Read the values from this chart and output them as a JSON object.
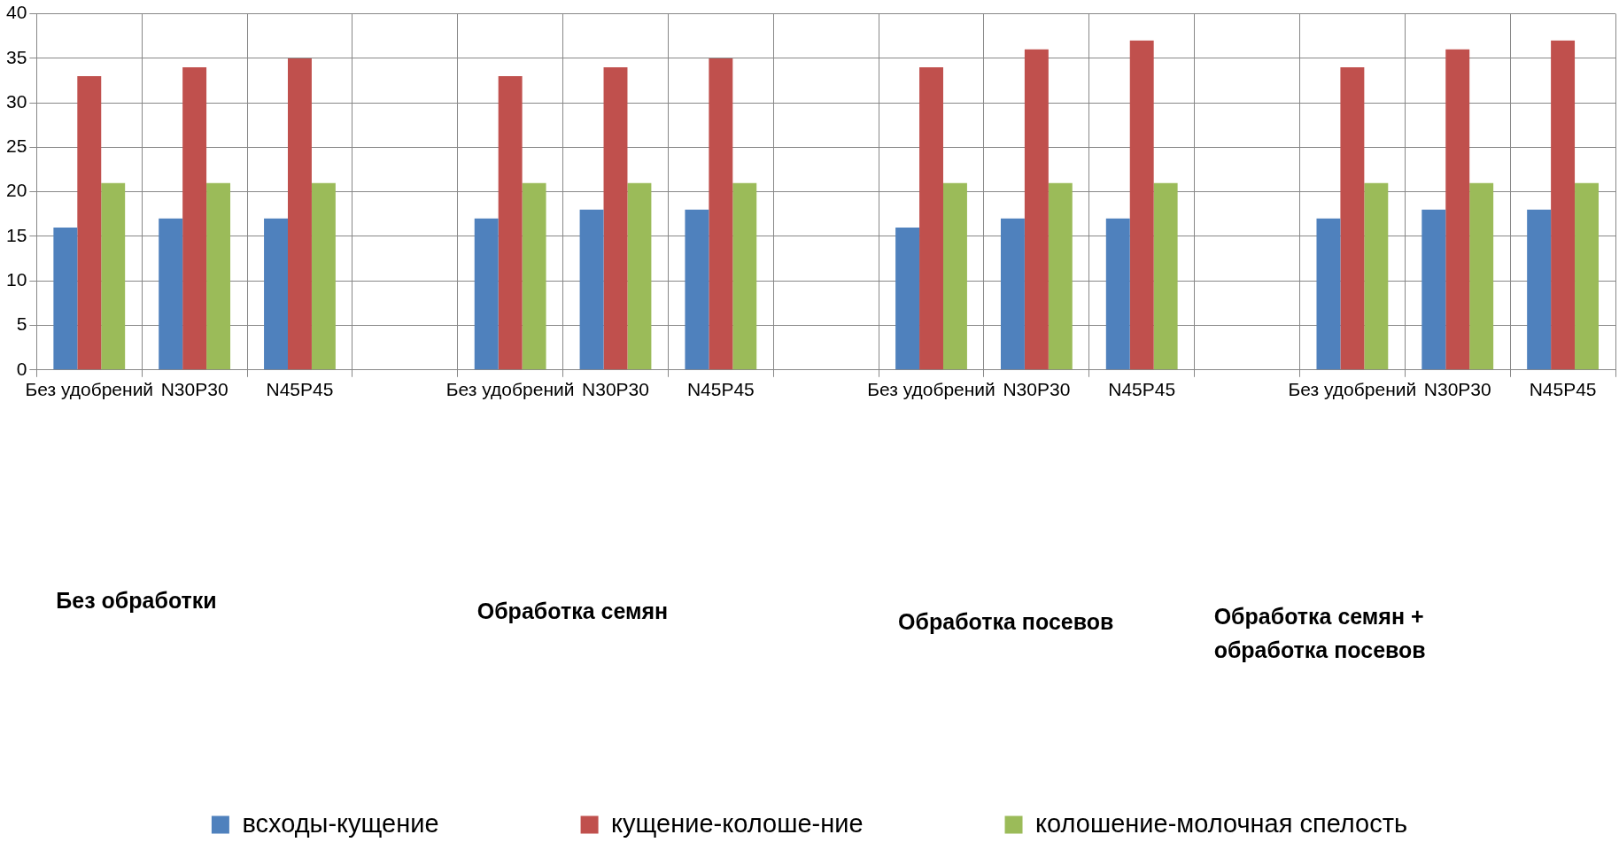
{
  "chart_data": {
    "type": "bar",
    "categories": [
      "Без удобрений",
      "N30P30",
      "N45P45",
      null,
      "Без удобрений",
      "N30P30",
      "N45P45",
      null,
      "Без удобрений",
      "N30P30",
      "N45P45",
      null,
      "Без удобрений",
      "N30P30",
      "N45P45"
    ],
    "series": [
      {
        "name": "всходы-кущение",
        "color": "#4f81bd",
        "values": [
          16,
          17,
          17,
          null,
          17,
          18,
          18,
          null,
          16,
          17,
          17,
          null,
          17,
          18,
          18
        ]
      },
      {
        "name": "кущение-колоше-ние",
        "color": "#c0504d",
        "values": [
          33,
          34,
          35,
          null,
          33,
          34,
          35,
          null,
          34,
          36,
          37,
          null,
          34,
          36,
          37
        ]
      },
      {
        "name": "колошение-молочная спелость",
        "color": "#9bbb59",
        "values": [
          21,
          21,
          21,
          null,
          21,
          21,
          21,
          null,
          21,
          21,
          21,
          null,
          21,
          21,
          21
        ]
      }
    ],
    "ylim": [
      0,
      40
    ],
    "yticks": [
      0,
      5,
      10,
      15,
      20,
      25,
      30,
      35,
      40
    ],
    "grid": true,
    "legend": "bottom",
    "annotations": [
      "Без обработки",
      "Обработка семян",
      "Обработка посевов",
      "Обработка семян + обработка посевов"
    ]
  }
}
